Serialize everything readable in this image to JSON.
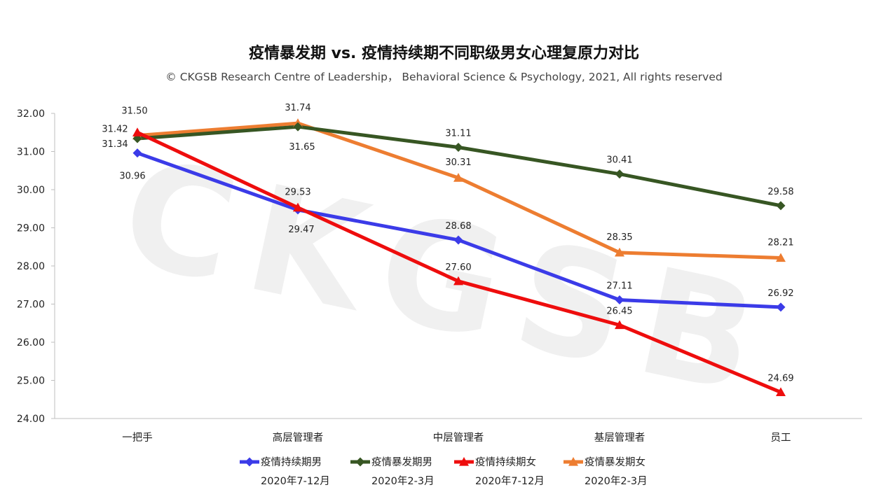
{
  "chart_data": {
    "type": "line",
    "title": "疫情暴发期 vs. 疫情持续期不同职级男女心理复原力对比",
    "subtitle": "© CKGSB Research Centre of Leadership， Behavioral Science & Psychology, 2021, All rights reserved",
    "watermark": "CKGSB",
    "categories": [
      "一把手",
      "高层管理者",
      "中层管理者",
      "基层管理者",
      "员工"
    ],
    "ylim": [
      24,
      32
    ],
    "yticks": [
      "24.00",
      "25.00",
      "26.00",
      "27.00",
      "28.00",
      "29.00",
      "30.00",
      "31.00",
      "32.00"
    ],
    "grid": false,
    "legend_position": "bottom",
    "series": [
      {
        "name": "疫情持续期男",
        "period": "2020年7-12月",
        "color": "#3b3be8",
        "marker": "diamond",
        "values": [
          30.96,
          29.47,
          28.68,
          27.11,
          26.92
        ],
        "labels": [
          "30.96",
          "29.47",
          "28.68",
          "27.11",
          "26.92"
        ]
      },
      {
        "name": "疫情暴发期男",
        "period": "2020年2-3月",
        "color": "#375623",
        "marker": "diamond",
        "values": [
          31.34,
          31.65,
          31.11,
          30.41,
          29.58
        ],
        "labels": [
          "31.34",
          "31.65",
          "31.11",
          "30.41",
          "29.58"
        ]
      },
      {
        "name": "疫情持续期女",
        "period": "2020年7-12月",
        "color": "#ee0d0d",
        "marker": "triangle",
        "values": [
          31.5,
          29.53,
          27.6,
          26.45,
          24.69
        ],
        "labels": [
          "31.50",
          "29.53",
          "27.60",
          "26.45",
          "24.69"
        ]
      },
      {
        "name": "疫情暴发期女",
        "period": "2020年2-3月",
        "color": "#ed7d31",
        "marker": "triangle",
        "values": [
          31.42,
          31.74,
          30.31,
          28.35,
          28.21
        ],
        "labels": [
          "31.42",
          "31.74",
          "30.31",
          "28.35",
          "28.21"
        ]
      }
    ]
  }
}
